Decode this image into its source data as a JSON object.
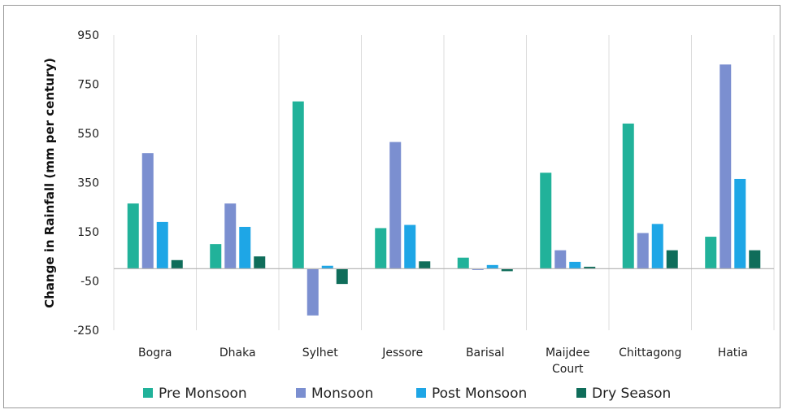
{
  "chart_data": {
    "type": "bar",
    "title": "",
    "xlabel": "",
    "ylabel": "Change in Rainfall (mm per century)",
    "ylim": [
      -250,
      950
    ],
    "yticks": [
      "950",
      "750",
      "550",
      "350",
      "150",
      "-50",
      "-250"
    ],
    "ytick_values": [
      950,
      750,
      550,
      350,
      150,
      -50,
      -250
    ],
    "categories": [
      "Bogra",
      "Dhaka",
      "Sylhet",
      "Jessore",
      "Barisal",
      "Maijdee Court",
      "Chittagong",
      "Hatia"
    ],
    "grid": "vertical separators between categories",
    "legend_position": "bottom",
    "series": [
      {
        "name": "Pre Monsoon",
        "color": "#21b29a",
        "values": [
          265,
          100,
          680,
          165,
          45,
          390,
          590,
          130
        ]
      },
      {
        "name": "Monsoon",
        "color": "#7b8fd0",
        "values": [
          470,
          265,
          -190,
          515,
          -5,
          75,
          145,
          830
        ]
      },
      {
        "name": "Post Monsoon",
        "color": "#1ea6e6",
        "values": [
          190,
          170,
          12,
          178,
          15,
          28,
          182,
          365
        ]
      },
      {
        "name": "Dry Season",
        "color": "#0f6d5a",
        "values": [
          35,
          50,
          -62,
          30,
          -10,
          8,
          75,
          75
        ]
      }
    ]
  }
}
